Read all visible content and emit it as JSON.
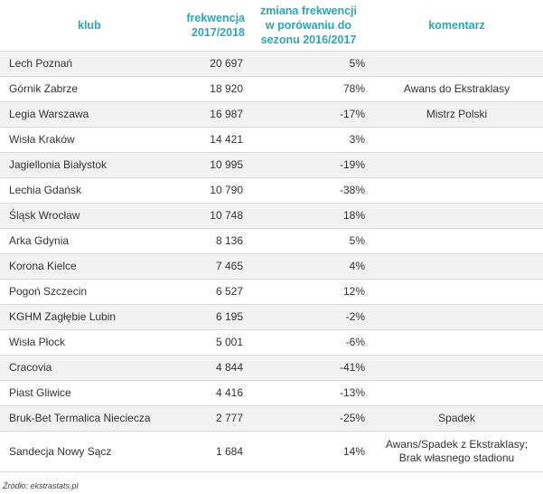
{
  "header": {
    "club": "klub",
    "freq_line1": "frekwencja",
    "freq_line2": "2017/2018",
    "change_line1": "zmiana frekwencji",
    "change_line2": "w porówaniu do",
    "change_line3": "sezonu 2016/2017",
    "comment": "komentarz"
  },
  "rows": [
    {
      "club": "Lech Poznań",
      "freq": "20 697",
      "change": "5%",
      "comment": ""
    },
    {
      "club": "Górnik Zabrze",
      "freq": "18 920",
      "change": "78%",
      "comment": "Awans do Ekstraklasy"
    },
    {
      "club": "Legia Warszawa",
      "freq": "16 987",
      "change": "-17%",
      "comment": "Mistrz Polski"
    },
    {
      "club": "Wisła Kraków",
      "freq": "14 421",
      "change": "3%",
      "comment": ""
    },
    {
      "club": "Jagiellonia Białystok",
      "freq": "10 995",
      "change": "-19%",
      "comment": ""
    },
    {
      "club": "Lechia Gdańsk",
      "freq": "10 790",
      "change": "-38%",
      "comment": ""
    },
    {
      "club": "Śląsk Wrocław",
      "freq": "10 748",
      "change": "18%",
      "comment": ""
    },
    {
      "club": "Arka Gdynia",
      "freq": "8 136",
      "change": "5%",
      "comment": ""
    },
    {
      "club": "Korona Kielce",
      "freq": "7 465",
      "change": "4%",
      "comment": ""
    },
    {
      "club": "Pogoń Szczecin",
      "freq": "6 527",
      "change": "12%",
      "comment": ""
    },
    {
      "club": "KGHM Zagłębie Lubin",
      "freq": "6 195",
      "change": "-2%",
      "comment": ""
    },
    {
      "club": "Wisła Płock",
      "freq": "5 001",
      "change": "-6%",
      "comment": ""
    },
    {
      "club": "Cracovia",
      "freq": "4 844",
      "change": "-41%",
      "comment": ""
    },
    {
      "club": "Piast Gliwice",
      "freq": "4 416",
      "change": "-13%",
      "comment": ""
    },
    {
      "club": "Bruk-Bet Termalica Nieciecza",
      "freq": "2 777",
      "change": "-25%",
      "comment": "Spadek"
    },
    {
      "club": "Sandecja Nowy Sącz",
      "freq": "1 684",
      "change": "14%",
      "comment_line1": "Awans/Spadek z Ekstraklasy;",
      "comment_line2": "Brak własnego stadionu"
    }
  ],
  "source": "Źródło: ekstrastats.pl",
  "colors": {
    "header_text": "#2aa8b5",
    "row_shade": "#f2f2f2",
    "rule": "#d9d9d9"
  }
}
